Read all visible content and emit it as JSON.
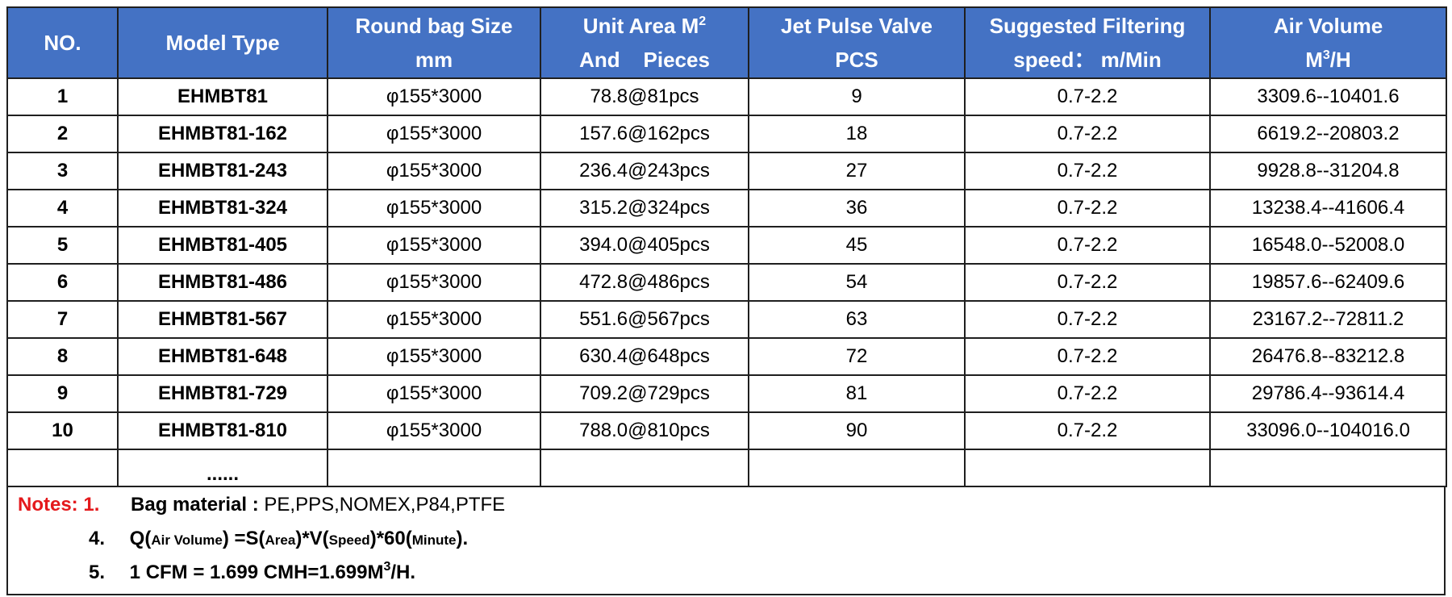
{
  "table": {
    "headers": [
      {
        "line1": "NO.",
        "line2": "",
        "sup": ""
      },
      {
        "line1": "Model Type",
        "line2": "",
        "sup": ""
      },
      {
        "line1": "Round bag Size",
        "line2": "mm",
        "sup": ""
      },
      {
        "line1": "Unit Area M",
        "line2": "And    Pieces",
        "sup": "2"
      },
      {
        "line1": "Jet Pulse Valve",
        "line2": "PCS",
        "sup": ""
      },
      {
        "line1": "Suggested Filtering",
        "line2": "speed： m/Min",
        "sup": ""
      },
      {
        "line1": "Air Volume",
        "line2": "M",
        "sup2": "3",
        "line2_tail": "/H"
      }
    ],
    "rows": [
      [
        "1",
        "EHMBT81",
        "φ155*3000",
        "78.8@81pcs",
        "9",
        "0.7-2.2",
        "3309.6--10401.6"
      ],
      [
        "2",
        "EHMBT81-162",
        "φ155*3000",
        "157.6@162pcs",
        "18",
        "0.7-2.2",
        "6619.2--20803.2"
      ],
      [
        "3",
        "EHMBT81-243",
        "φ155*3000",
        "236.4@243pcs",
        "27",
        "0.7-2.2",
        "9928.8--31204.8"
      ],
      [
        "4",
        "EHMBT81-324",
        "φ155*3000",
        "315.2@324pcs",
        "36",
        "0.7-2.2",
        "13238.4--41606.4"
      ],
      [
        "5",
        "EHMBT81-405",
        "φ155*3000",
        "394.0@405pcs",
        "45",
        "0.7-2.2",
        "16548.0--52008.0"
      ],
      [
        "6",
        "EHMBT81-486",
        "φ155*3000",
        "472.8@486pcs",
        "54",
        "0.7-2.2",
        "19857.6--62409.6"
      ],
      [
        "7",
        "EHMBT81-567",
        "φ155*3000",
        "551.6@567pcs",
        "63",
        "0.7-2.2",
        "23167.2--72811.2"
      ],
      [
        "8",
        "EHMBT81-648",
        "φ155*3000",
        "630.4@648pcs",
        "72",
        "0.7-2.2",
        "26476.8--83212.8"
      ],
      [
        "9",
        "EHMBT81-729",
        "φ155*3000",
        "709.2@729pcs",
        "81",
        "0.7-2.2",
        "29786.4--93614.4"
      ],
      [
        "10",
        "EHMBT81-810",
        "φ155*3000",
        "788.0@810pcs",
        "90",
        "0.7-2.2",
        "33096.0--104016.0"
      ]
    ],
    "ellipsis": "......"
  },
  "notes": {
    "label": "Notes:",
    "n1": {
      "num": "1.",
      "key": "Bag material :",
      "value": " PE,PPS,NOMEX,P84,PTFE"
    },
    "n4": {
      "num": "4.",
      "q": "Q(",
      "air": "Air Volume",
      "eq_s": ") =S(",
      "area": "Area",
      "v": ")*V(",
      "speed": "Speed",
      "sixty": ")*60(",
      "minute": "Minute",
      "end": ")."
    },
    "n5": {
      "num": "5.",
      "text": "1 CFM = 1.699 CMH=1.699M",
      "sup": "3",
      "tail": "/H."
    }
  },
  "colors": {
    "header_bg": "#4472c4",
    "header_text": "#ffffff",
    "notes_label": "#e4191c",
    "border": "#1f1f1f"
  }
}
